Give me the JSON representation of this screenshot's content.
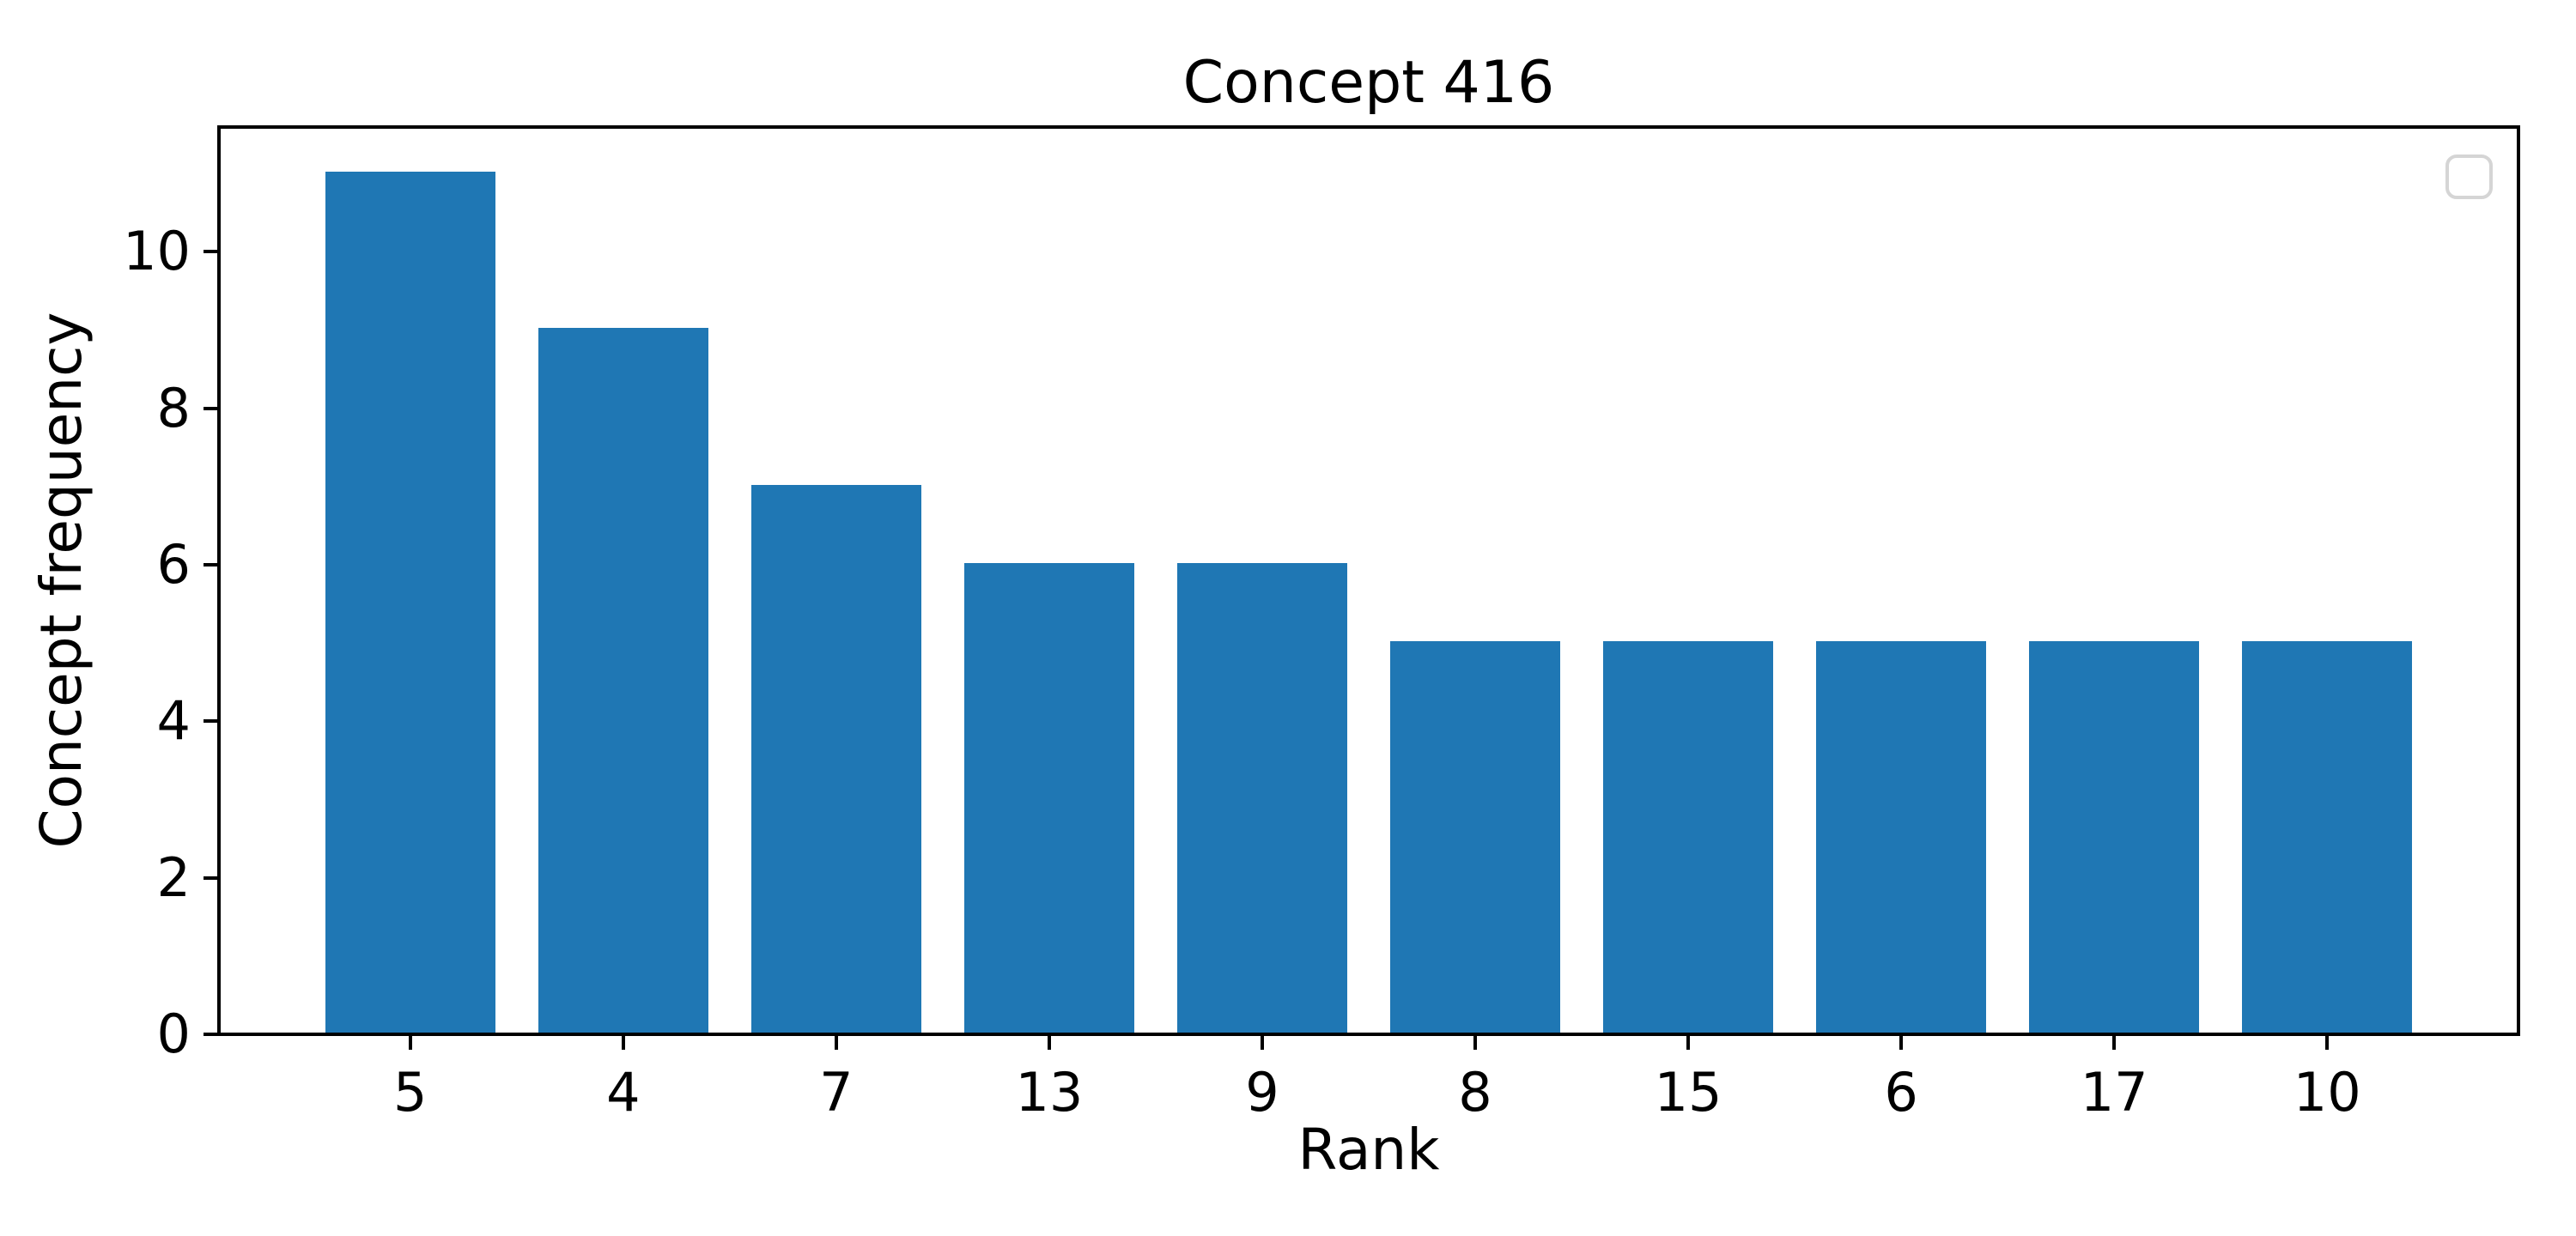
{
  "chart_data": {
    "type": "bar",
    "title": "Concept 416",
    "xlabel": "Rank",
    "ylabel": "Concept frequency",
    "categories": [
      "5",
      "4",
      "7",
      "13",
      "9",
      "8",
      "15",
      "6",
      "17",
      "10"
    ],
    "values": [
      11,
      9,
      7,
      6,
      6,
      5,
      5,
      5,
      5,
      5
    ],
    "yticks": [
      0,
      2,
      4,
      6,
      8,
      10
    ],
    "ylim": [
      0,
      11.55
    ],
    "bar_color": "#1f77b4",
    "axis_color": "#000000",
    "grid": false,
    "legend": {
      "visible": true,
      "entries": [],
      "position": "upper-right",
      "frame_color": "#d5d5d5"
    }
  }
}
